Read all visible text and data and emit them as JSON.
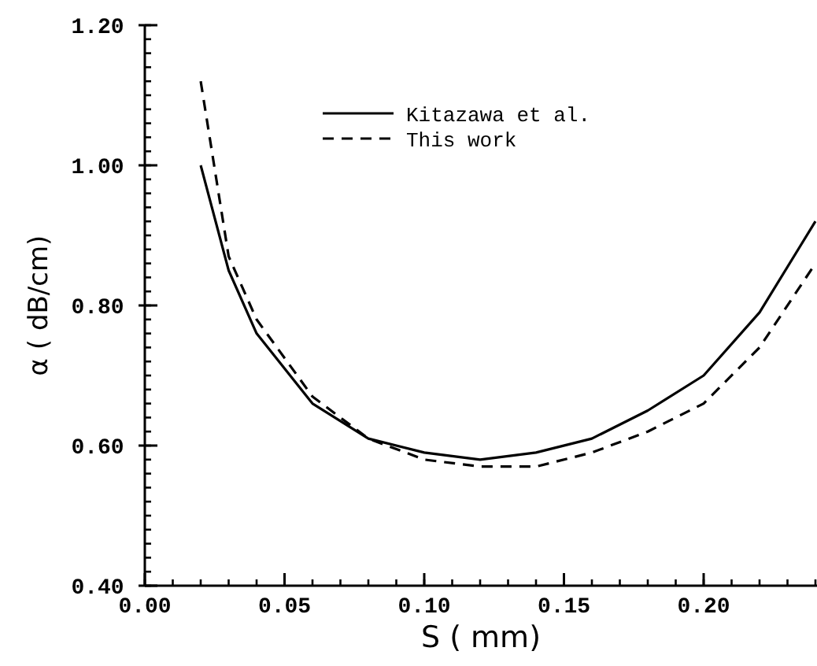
{
  "chart_data": {
    "type": "line",
    "xlabel": "S ( mm)",
    "ylabel": "α ( dB/cm)",
    "x": [
      0.02,
      0.03,
      0.04,
      0.06,
      0.08,
      0.1,
      0.12,
      0.14,
      0.16,
      0.18,
      0.2,
      0.22,
      0.24
    ],
    "series": [
      {
        "name": "Kitazawa et al.",
        "color": "#000000",
        "line_style": "solid",
        "values": [
          1.0,
          0.85,
          0.76,
          0.66,
          0.61,
          0.59,
          0.58,
          0.59,
          0.61,
          0.65,
          0.7,
          0.79,
          0.92
        ]
      },
      {
        "name": "This work",
        "color": "#000000",
        "line_style": "dashed",
        "values": [
          1.12,
          0.87,
          0.78,
          0.67,
          0.61,
          0.58,
          0.57,
          0.57,
          0.59,
          0.62,
          0.66,
          0.74,
          0.86
        ]
      }
    ],
    "xlim": [
      0,
      0.24
    ],
    "ylim": [
      0.4,
      1.2
    ],
    "xticks": [
      {
        "value": 0,
        "label": "0.00"
      },
      {
        "value": 0.05,
        "label": "0.05"
      },
      {
        "value": 0.1,
        "label": "0.10"
      },
      {
        "value": 0.15,
        "label": "0.15"
      },
      {
        "value": 0.2,
        "label": "0.20"
      }
    ],
    "yticks": [
      {
        "value": 0.4,
        "label": "0.40"
      },
      {
        "value": 0.6,
        "label": "0.60"
      },
      {
        "value": 0.8,
        "label": "0.80"
      },
      {
        "value": 1.0,
        "label": "1.00"
      },
      {
        "value": 1.2,
        "label": "1.20"
      }
    ],
    "marker": "none",
    "grid": false,
    "legend": "top"
  }
}
